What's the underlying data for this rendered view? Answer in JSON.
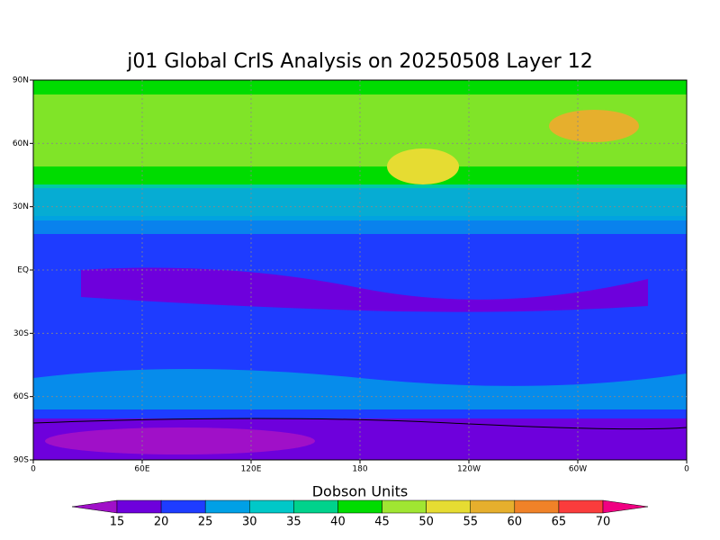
{
  "title": "j01 Global CrIS Analysis on 20250508 Layer 12",
  "map": {
    "lat_ticks": [
      "90N",
      "60N",
      "30N",
      "EQ",
      "30S",
      "60S",
      "90S"
    ],
    "lon_ticks": [
      "0",
      "60E",
      "120E",
      "180",
      "120W",
      "60W",
      "0"
    ]
  },
  "colorbar": {
    "title": "Dobson Units",
    "levels": [
      15,
      20,
      25,
      30,
      35,
      40,
      45,
      50,
      55,
      60,
      65,
      70
    ],
    "colors": [
      "#a010c8",
      "#6e00dc",
      "#1e3cff",
      "#00a0e6",
      "#00c8c8",
      "#00d28c",
      "#00dc00",
      "#a0e632",
      "#e6dc32",
      "#e6af2d",
      "#f08228",
      "#fa3c3c",
      "#f00082"
    ]
  }
}
